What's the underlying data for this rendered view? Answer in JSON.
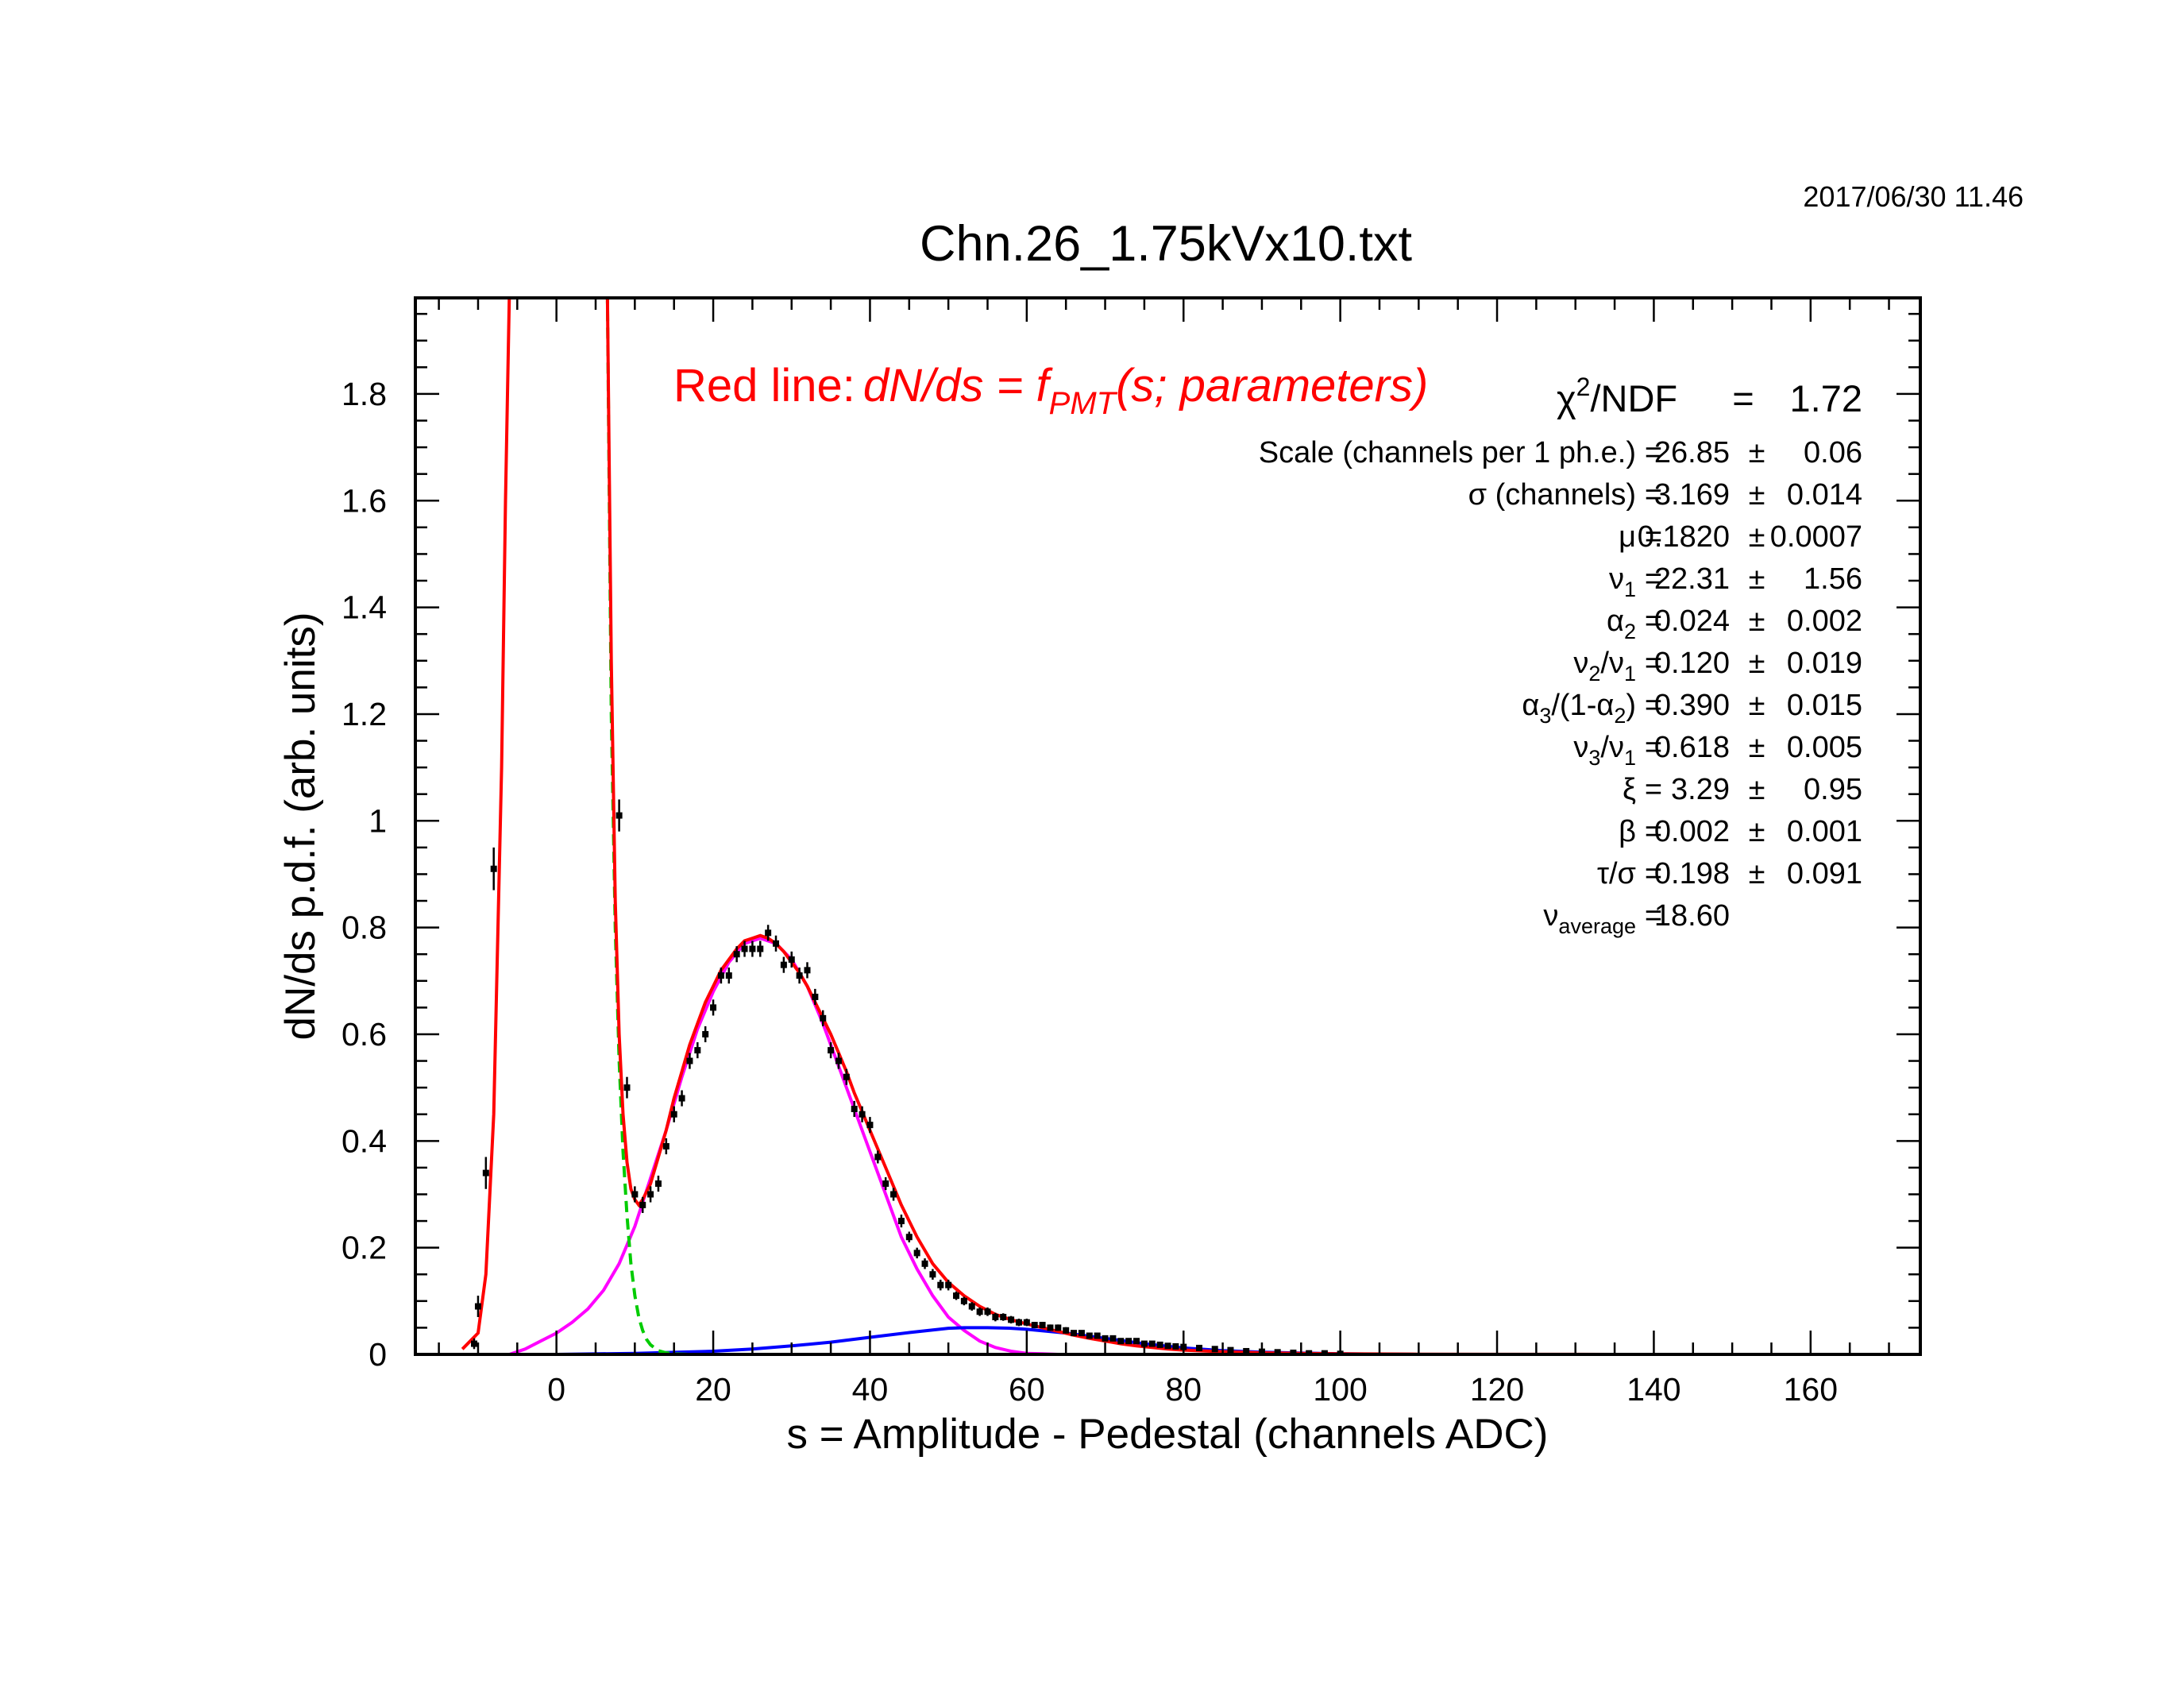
{
  "timestamp": "2017/06/30   11.46",
  "chart_data": {
    "type": "line",
    "title": "Chn.26_1.75kVx10.txt",
    "xlabel": "s = Amplitude - Pedestal (channels ADC)",
    "ylabel": "dN/ds p.d.f. (arb. units)",
    "xlim": [
      -18,
      174
    ],
    "ylim": [
      0,
      1.98
    ],
    "x_ticks": [
      0,
      20,
      40,
      60,
      80,
      100,
      120,
      140,
      160
    ],
    "y_ticks": [
      0,
      0.2,
      0.4,
      0.6,
      0.8,
      1,
      1.2,
      1.4,
      1.6,
      1.8
    ],
    "y_tick_labels": [
      "0",
      "0.2",
      "0.4",
      "0.6",
      "0.8",
      "1",
      "1.2",
      "1.4",
      "1.6",
      "1.8"
    ],
    "grid": false,
    "legend": {
      "prefix": "Red line:",
      "formula_main": "dN/ds = f",
      "formula_sub": "PMT",
      "formula_tail": "(s; parameters)",
      "color": "#ff0000"
    },
    "series": [
      {
        "color": "#ff0000",
        "x": [
          -12,
          -10,
          -9,
          -8,
          -7,
          -6.5,
          -6,
          6.5,
          7,
          7.5,
          8,
          8.5,
          9,
          9.5,
          10,
          10.5,
          11,
          12,
          13,
          14,
          15,
          16,
          17,
          18,
          19,
          20,
          21,
          22,
          23,
          24,
          25,
          26,
          27,
          28,
          29,
          30,
          31,
          32,
          33,
          34,
          35,
          36,
          37,
          38,
          39,
          40,
          42,
          44,
          46,
          48,
          50,
          52,
          54,
          56,
          58,
          60,
          62,
          64,
          66,
          68,
          70,
          72,
          74,
          76,
          78,
          80,
          85,
          90,
          95,
          100,
          110,
          120,
          130,
          140,
          150
        ],
        "y": [
          0.01,
          0.04,
          0.15,
          0.45,
          1.1,
          1.6,
          1.99,
          1.99,
          1.3,
          0.85,
          0.6,
          0.45,
          0.36,
          0.31,
          0.29,
          0.28,
          0.29,
          0.32,
          0.37,
          0.42,
          0.48,
          0.53,
          0.58,
          0.62,
          0.66,
          0.69,
          0.72,
          0.74,
          0.76,
          0.775,
          0.78,
          0.785,
          0.78,
          0.77,
          0.755,
          0.735,
          0.715,
          0.69,
          0.66,
          0.63,
          0.6,
          0.565,
          0.53,
          0.49,
          0.455,
          0.42,
          0.35,
          0.28,
          0.22,
          0.17,
          0.135,
          0.11,
          0.09,
          0.075,
          0.065,
          0.057,
          0.05,
          0.043,
          0.036,
          0.03,
          0.025,
          0.02,
          0.016,
          0.013,
          0.01,
          0.008,
          0.005,
          0.003,
          0.002,
          0.001,
          0.0005,
          0.0002,
          0.0001,
          0.0,
          0.0
        ]
      },
      {
        "color": "#00cc00",
        "x": [
          6.5,
          7,
          7.5,
          8,
          8.5,
          9,
          9.5,
          10,
          10.5,
          11,
          11.5,
          12,
          13,
          14,
          15,
          17,
          20,
          30,
          40,
          50,
          60
        ],
        "y": [
          1.99,
          1.2,
          0.8,
          0.55,
          0.38,
          0.26,
          0.17,
          0.11,
          0.07,
          0.045,
          0.028,
          0.018,
          0.007,
          0.003,
          0.001,
          0.0,
          0.0,
          0.0,
          0.0,
          0.0,
          0.0
        ]
      },
      {
        "color": "#ff00ff",
        "x": [
          -6,
          -4,
          -2,
          0,
          2,
          4,
          6,
          8,
          10,
          12,
          14,
          16,
          18,
          20,
          22,
          24,
          26,
          28,
          30,
          32,
          34,
          36,
          38,
          40,
          42,
          44,
          46,
          48,
          50,
          52,
          54,
          56,
          58,
          60,
          62,
          64
        ],
        "y": [
          0.0,
          0.01,
          0.025,
          0.04,
          0.06,
          0.085,
          0.12,
          0.17,
          0.24,
          0.33,
          0.42,
          0.52,
          0.61,
          0.68,
          0.735,
          0.77,
          0.78,
          0.77,
          0.74,
          0.69,
          0.62,
          0.54,
          0.46,
          0.38,
          0.3,
          0.22,
          0.16,
          0.11,
          0.07,
          0.045,
          0.025,
          0.013,
          0.006,
          0.002,
          0.001,
          0.0
        ]
      },
      {
        "color": "#0000ff",
        "x": [
          0,
          10,
          20,
          25,
          30,
          35,
          40,
          45,
          50,
          52,
          55,
          58,
          60,
          65,
          70,
          75,
          80,
          85,
          90,
          100,
          110
        ],
        "y": [
          0.0,
          0.002,
          0.006,
          0.01,
          0.016,
          0.023,
          0.032,
          0.041,
          0.049,
          0.05,
          0.05,
          0.049,
          0.047,
          0.04,
          0.03,
          0.02,
          0.012,
          0.007,
          0.004,
          0.001,
          0.0
        ]
      }
    ],
    "data_points": {
      "color": "#000000",
      "x": [
        -10.5,
        -10,
        -9,
        -8,
        8,
        9,
        10,
        11,
        12,
        13,
        14,
        15,
        16,
        17,
        18,
        19,
        20,
        21,
        22,
        23,
        24,
        25,
        26,
        27,
        28,
        29,
        30,
        31,
        32,
        33,
        34,
        35,
        36,
        37,
        38,
        39,
        40,
        41,
        42,
        43,
        44,
        45,
        46,
        47,
        48,
        49,
        50,
        51,
        52,
        53,
        54,
        55,
        56,
        57,
        58,
        59,
        60,
        61,
        62,
        63,
        64,
        65,
        66,
        67,
        68,
        69,
        70,
        71,
        72,
        73,
        74,
        75,
        76,
        77,
        78,
        79,
        80,
        82,
        84,
        86,
        88,
        90,
        92,
        94,
        96,
        98,
        100
      ],
      "y": [
        0.02,
        0.09,
        0.34,
        0.91,
        1.01,
        0.5,
        0.3,
        0.28,
        0.3,
        0.32,
        0.39,
        0.45,
        0.48,
        0.55,
        0.57,
        0.6,
        0.65,
        0.71,
        0.71,
        0.75,
        0.76,
        0.76,
        0.76,
        0.79,
        0.77,
        0.73,
        0.74,
        0.71,
        0.72,
        0.67,
        0.63,
        0.57,
        0.55,
        0.52,
        0.46,
        0.45,
        0.43,
        0.37,
        0.32,
        0.3,
        0.25,
        0.22,
        0.19,
        0.17,
        0.15,
        0.13,
        0.13,
        0.11,
        0.1,
        0.09,
        0.08,
        0.08,
        0.07,
        0.07,
        0.065,
        0.06,
        0.06,
        0.055,
        0.055,
        0.05,
        0.05,
        0.045,
        0.04,
        0.04,
        0.035,
        0.035,
        0.03,
        0.03,
        0.025,
        0.025,
        0.025,
        0.02,
        0.02,
        0.018,
        0.016,
        0.015,
        0.014,
        0.012,
        0.01,
        0.008,
        0.006,
        0.005,
        0.004,
        0.003,
        0.002,
        0.002,
        0.001
      ],
      "err": [
        0.01,
        0.02,
        0.03,
        0.04,
        0.03,
        0.02,
        0.015,
        0.015,
        0.015,
        0.015,
        0.015,
        0.015,
        0.015,
        0.015,
        0.015,
        0.015,
        0.015,
        0.015,
        0.015,
        0.015,
        0.015,
        0.015,
        0.015,
        0.015,
        0.015,
        0.015,
        0.015,
        0.015,
        0.015,
        0.015,
        0.015,
        0.015,
        0.015,
        0.015,
        0.015,
        0.015,
        0.015,
        0.012,
        0.012,
        0.012,
        0.012,
        0.01,
        0.01,
        0.01,
        0.01,
        0.01,
        0.01,
        0.008,
        0.008,
        0.008,
        0.008,
        0.008,
        0.008,
        0.007,
        0.007,
        0.007,
        0.007,
        0.006,
        0.006,
        0.006,
        0.006,
        0.006,
        0.005,
        0.005,
        0.005,
        0.005,
        0.005,
        0.005,
        0.004,
        0.004,
        0.004,
        0.004,
        0.004,
        0.004,
        0.004,
        0.004,
        0.004,
        0.003,
        0.003,
        0.003,
        0.003,
        0.003,
        0.002,
        0.002,
        0.002,
        0.002,
        0.002
      ]
    },
    "fit_results": {
      "chi2": {
        "label_sym": "χ",
        "label_sup": "2",
        "label_rest": "/NDF",
        "eq": "=",
        "value": "1.72"
      },
      "params": [
        {
          "key": "scale",
          "parts": [
            {
              "t": "Scale (channels per 1 ph.e.)"
            }
          ],
          "eq": "=",
          "value": "26.85",
          "pm": "±",
          "err": "0.06"
        },
        {
          "key": "sigma",
          "parts": [
            {
              "t": "σ"
            },
            {
              "t": " (channels)"
            }
          ],
          "eq": "=",
          "value": "3.169",
          "pm": "±",
          "err": "0.014"
        },
        {
          "key": "mu",
          "parts": [
            {
              "t": "μ"
            }
          ],
          "eq": "=",
          "value": "0.1820",
          "pm": "±",
          "err": "0.0007"
        },
        {
          "key": "nu1",
          "parts": [
            {
              "t": "ν"
            },
            {
              "t": "1",
              "sub": true
            }
          ],
          "eq": "=",
          "value": "22.31",
          "pm": "±",
          "err": "1.56"
        },
        {
          "key": "alpha2",
          "parts": [
            {
              "t": "α"
            },
            {
              "t": "2",
              "sub": true
            }
          ],
          "eq": "=",
          "value": "0.024",
          "pm": "±",
          "err": "0.002"
        },
        {
          "key": "nu2nu1",
          "parts": [
            {
              "t": "ν"
            },
            {
              "t": "2",
              "sub": true
            },
            {
              "t": "/ν"
            },
            {
              "t": "1",
              "sub": true
            }
          ],
          "eq": "=",
          "value": "0.120",
          "pm": "±",
          "err": "0.019"
        },
        {
          "key": "alpha3",
          "parts": [
            {
              "t": "α"
            },
            {
              "t": "3",
              "sub": true
            },
            {
              "t": "/(1-α"
            },
            {
              "t": "2",
              "sub": true
            },
            {
              "t": ")"
            }
          ],
          "eq": "=",
          "value": "0.390",
          "pm": "±",
          "err": "0.015"
        },
        {
          "key": "nu3nu1",
          "parts": [
            {
              "t": "ν"
            },
            {
              "t": "3",
              "sub": true
            },
            {
              "t": "/ν"
            },
            {
              "t": "1",
              "sub": true
            }
          ],
          "eq": "=",
          "value": "0.618",
          "pm": "±",
          "err": "0.005"
        },
        {
          "key": "xi",
          "parts": [
            {
              "t": "ξ"
            }
          ],
          "eq": "=",
          "value": "3.29",
          "pm": "±",
          "err": "0.95"
        },
        {
          "key": "beta",
          "parts": [
            {
              "t": "β"
            }
          ],
          "eq": "=",
          "value": "0.002",
          "pm": "±",
          "err": "0.001"
        },
        {
          "key": "tausigma",
          "parts": [
            {
              "t": "τ/σ"
            }
          ],
          "eq": "=",
          "value": "0.198",
          "pm": "±",
          "err": "0.091"
        },
        {
          "key": "nuavg",
          "parts": [
            {
              "t": "ν"
            },
            {
              "t": "average",
              "sub": true
            }
          ],
          "eq": "=",
          "value": "18.60",
          "pm": "",
          "err": ""
        }
      ]
    }
  }
}
